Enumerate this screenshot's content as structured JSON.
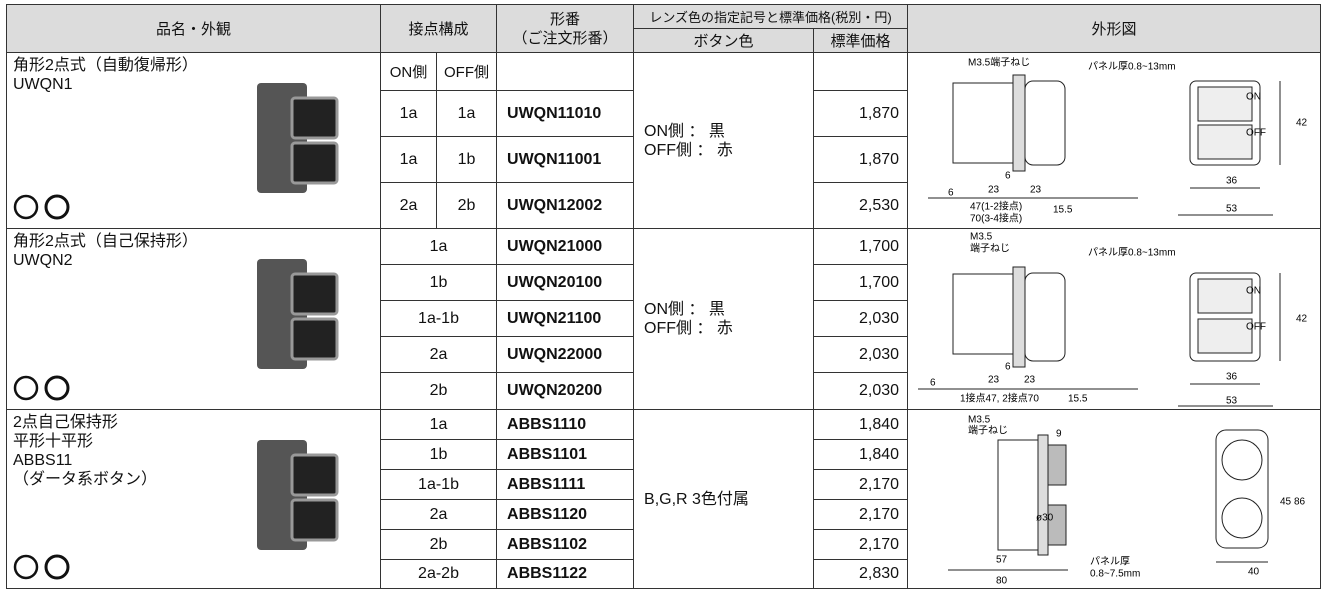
{
  "header": {
    "product": "品名・外観",
    "contacts": "接点構成",
    "model": "形番",
    "model_note": "（ご注文形番）",
    "lens": "レンズ色の指定記号と標準価格(税別・円)",
    "button_color": "ボタン色",
    "price": "標準価格",
    "drawing": "外形図"
  },
  "groups": [
    {
      "name": [
        "角形2点式（自動復帰形）",
        "UWQN1"
      ],
      "contact_header": [
        "ON側",
        "OFF側"
      ],
      "rows": [
        {
          "contacts": [
            "1a",
            "1a"
          ],
          "model": "UWQN11010",
          "price": "1,870"
        },
        {
          "contacts": [
            "1a",
            "1b"
          ],
          "model": "UWQN11001",
          "price": "1,870"
        },
        {
          "contacts": [
            "2a",
            "2b"
          ],
          "model": "UWQN12002",
          "price": "2,530"
        }
      ],
      "button_color": [
        "ON側 ： 黒",
        "OFF側 ： 赤"
      ],
      "drawing": [
        "M3.5端子ねじ",
        "パネル厚0.8~13mm",
        "ON",
        "OFF",
        "42",
        "6",
        "23",
        "23",
        "6",
        "47(1-2接点)",
        "70(3-4接点)",
        "15.5",
        "36",
        "53"
      ]
    },
    {
      "name": [
        "角形2点式（自己保持形）",
        "UWQN2"
      ],
      "rows": [
        {
          "contacts": [
            "1a"
          ],
          "model": "UWQN21000",
          "price": "1,700"
        },
        {
          "contacts": [
            "1b"
          ],
          "model": "UWQN20100",
          "price": "1,700"
        },
        {
          "contacts": [
            "1a-1b"
          ],
          "model": "UWQN21100",
          "price": "2,030"
        },
        {
          "contacts": [
            "2a"
          ],
          "model": "UWQN22000",
          "price": "2,030"
        },
        {
          "contacts": [
            "2b"
          ],
          "model": "UWQN20200",
          "price": "2,030"
        }
      ],
      "button_color": [
        "ON側 ： 黒",
        "OFF側 ： 赤"
      ],
      "drawing": [
        "M3.5",
        "端子ねじ",
        "パネル厚0.8~13mm",
        "ON",
        "OFF",
        "42",
        "6",
        "23",
        "23",
        "6",
        "1接点47, 2接点70",
        "15.5",
        "36",
        "53"
      ]
    },
    {
      "name": [
        "2点自己保持形",
        "平形十平形",
        "ABBS11",
        "（ダータ系ボタン）"
      ],
      "rows": [
        {
          "contacts": [
            "1a"
          ],
          "model": "ABBS1110",
          "price": "1,840"
        },
        {
          "contacts": [
            "1b"
          ],
          "model": "ABBS1101",
          "price": "1,840"
        },
        {
          "contacts": [
            "1a-1b"
          ],
          "model": "ABBS1111",
          "price": "2,170"
        },
        {
          "contacts": [
            "2a"
          ],
          "model": "ABBS1120",
          "price": "2,170"
        },
        {
          "contacts": [
            "2b"
          ],
          "model": "ABBS1102",
          "price": "2,170"
        },
        {
          "contacts": [
            "2a-2b"
          ],
          "model": "ABBS1122",
          "price": "2,830"
        }
      ],
      "button_color": [
        "B,G,R 3色付属"
      ],
      "drawing": [
        "M3.5",
        "端子ねじ",
        "9",
        "45",
        "86",
        "ø30",
        "57",
        "80",
        "パネル厚",
        "0.8~7.5mm",
        "40"
      ]
    }
  ]
}
